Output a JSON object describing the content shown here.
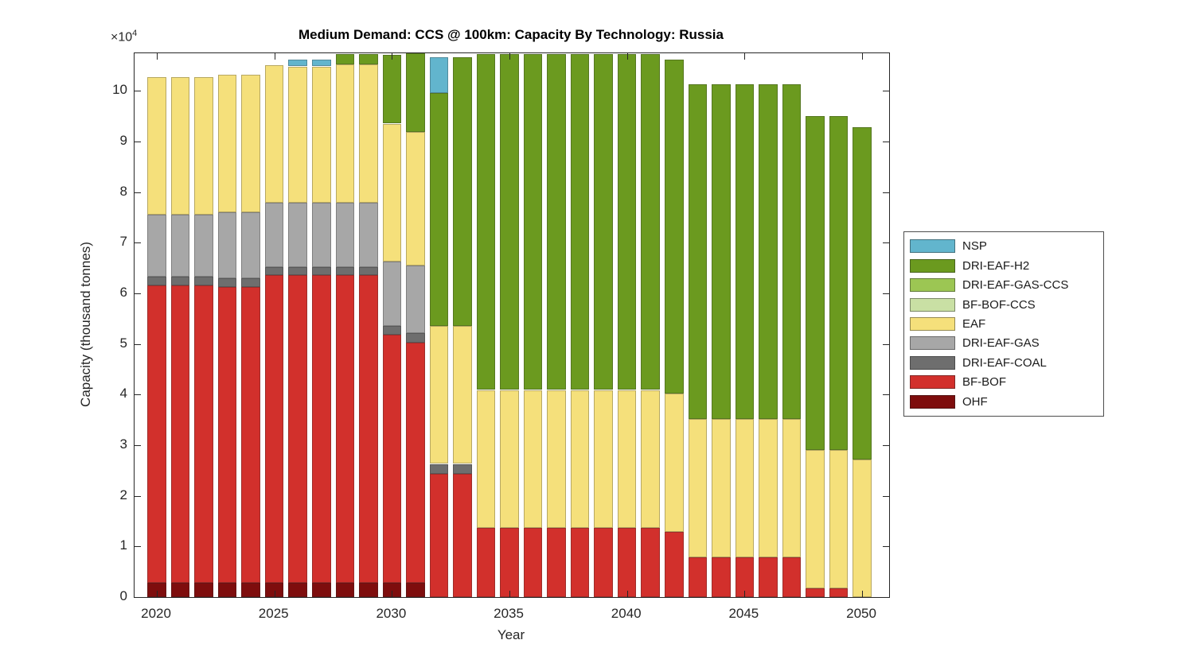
{
  "figure": {
    "title": "Medium Demand: CCS @ 100km: Capacity By Technology: Russia",
    "xlabel": "Year",
    "ylabel": "Capacity (thousand tonnes)",
    "y_multiplier_base": "×10",
    "y_multiplier_exp": "4"
  },
  "chart_data": {
    "type": "bar",
    "stacked": true,
    "title": "Medium Demand: CCS @ 100km: Capacity By Technology: Russia",
    "xlabel": "Year",
    "ylabel": "Capacity (thousand tonnes)",
    "y_unit_multiplier": 10000,
    "grid": false,
    "legend_position": "right-outside",
    "ylim": [
      0,
      10.74
    ],
    "xlim": [
      2019.05,
      2051.15
    ],
    "yticks": [
      0,
      1,
      2,
      3,
      4,
      5,
      6,
      7,
      8,
      9,
      10
    ],
    "xticks": [
      2020,
      2025,
      2030,
      2035,
      2040,
      2045,
      2050
    ],
    "years": [
      2020,
      2021,
      2022,
      2023,
      2024,
      2025,
      2026,
      2027,
      2028,
      2029,
      2030,
      2031,
      2032,
      2033,
      2034,
      2035,
      2036,
      2037,
      2038,
      2039,
      2040,
      2041,
      2042,
      2043,
      2044,
      2045,
      2046,
      2047,
      2048,
      2049,
      2050
    ],
    "bar_width_years": 0.8,
    "legend_order": [
      "NSP",
      "DRI-EAF-H2",
      "DRI-EAF-GAS-CCS",
      "BF-BOF-CCS",
      "EAF",
      "DRI-EAF-GAS",
      "DRI-EAF-COAL",
      "BF-BOF",
      "OHF"
    ],
    "series": [
      {
        "name": "OHF",
        "color": "#7E0D0D",
        "values": [
          0.28,
          0.28,
          0.28,
          0.28,
          0.28,
          0.28,
          0.28,
          0.28,
          0.28,
          0.28,
          0.28,
          0.28,
          0,
          0,
          0,
          0,
          0,
          0,
          0,
          0,
          0,
          0,
          0,
          0,
          0,
          0,
          0,
          0,
          0,
          0,
          0
        ]
      },
      {
        "name": "BF-BOF",
        "color": "#D2302C",
        "values": [
          5.88,
          5.88,
          5.88,
          5.84,
          5.84,
          6.08,
          6.08,
          6.08,
          6.08,
          6.08,
          4.9,
          4.74,
          2.43,
          2.43,
          1.37,
          1.37,
          1.37,
          1.37,
          1.37,
          1.37,
          1.37,
          1.37,
          1.29,
          0.78,
          0.78,
          0.78,
          0.78,
          0.78,
          0.17,
          0.17,
          0
        ]
      },
      {
        "name": "DRI-EAF-COAL",
        "color": "#6E6E6E",
        "values": [
          0.17,
          0.17,
          0.17,
          0.17,
          0.17,
          0.16,
          0.16,
          0.16,
          0.16,
          0.16,
          0.18,
          0.19,
          0.2,
          0.2,
          0,
          0,
          0,
          0,
          0,
          0,
          0,
          0,
          0,
          0,
          0,
          0,
          0,
          0,
          0,
          0,
          0
        ]
      },
      {
        "name": "DRI-EAF-GAS",
        "color": "#A7A7A7",
        "values": [
          1.22,
          1.22,
          1.22,
          1.31,
          1.31,
          1.27,
          1.27,
          1.27,
          1.27,
          1.27,
          1.26,
          1.34,
          0,
          0,
          0,
          0,
          0,
          0,
          0,
          0,
          0,
          0,
          0,
          0,
          0,
          0,
          0,
          0,
          0,
          0,
          0
        ]
      },
      {
        "name": "EAF",
        "color": "#F5E07B",
        "values": [
          2.72,
          2.72,
          2.72,
          2.72,
          2.72,
          2.72,
          2.69,
          2.69,
          2.73,
          2.73,
          2.73,
          2.63,
          2.73,
          2.73,
          2.72,
          2.72,
          2.72,
          2.72,
          2.72,
          2.72,
          2.72,
          2.72,
          2.73,
          2.74,
          2.74,
          2.74,
          2.74,
          2.74,
          2.74,
          2.74,
          2.72
        ]
      },
      {
        "name": "BF-BOF-CCS",
        "color": "#C9E0A4",
        "values": [
          0,
          0,
          0,
          0,
          0,
          0,
          0,
          0,
          0,
          0,
          0,
          0,
          0,
          0,
          0,
          0,
          0,
          0,
          0,
          0,
          0,
          0,
          0,
          0,
          0,
          0,
          0,
          0,
          0,
          0,
          0
        ]
      },
      {
        "name": "DRI-EAF-GAS-CCS",
        "color": "#9CC653",
        "values": [
          0,
          0,
          0,
          0,
          0,
          0,
          0,
          0,
          0,
          0,
          0,
          0,
          0,
          0,
          0,
          0,
          0,
          0,
          0,
          0,
          0,
          0,
          0,
          0,
          0,
          0,
          0,
          0,
          0,
          0,
          0
        ]
      },
      {
        "name": "DRI-EAF-H2",
        "color": "#6B9A1F",
        "values": [
          0,
          0,
          0,
          0,
          0,
          0,
          0,
          0,
          0.2,
          0.2,
          1.36,
          1.56,
          4.59,
          5.3,
          6.63,
          6.63,
          6.63,
          6.63,
          6.63,
          6.63,
          6.63,
          6.63,
          6.59,
          6.61,
          6.61,
          6.61,
          6.61,
          6.61,
          6.59,
          6.59,
          6.56
        ]
      },
      {
        "name": "NSP",
        "color": "#62B5CD",
        "values": [
          0,
          0,
          0,
          0,
          0,
          0,
          0.14,
          0.14,
          0,
          0,
          0,
          0,
          0.71,
          0,
          0,
          0,
          0,
          0,
          0,
          0,
          0,
          0,
          0,
          0,
          0,
          0,
          0,
          0,
          0,
          0,
          0
        ]
      }
    ]
  }
}
